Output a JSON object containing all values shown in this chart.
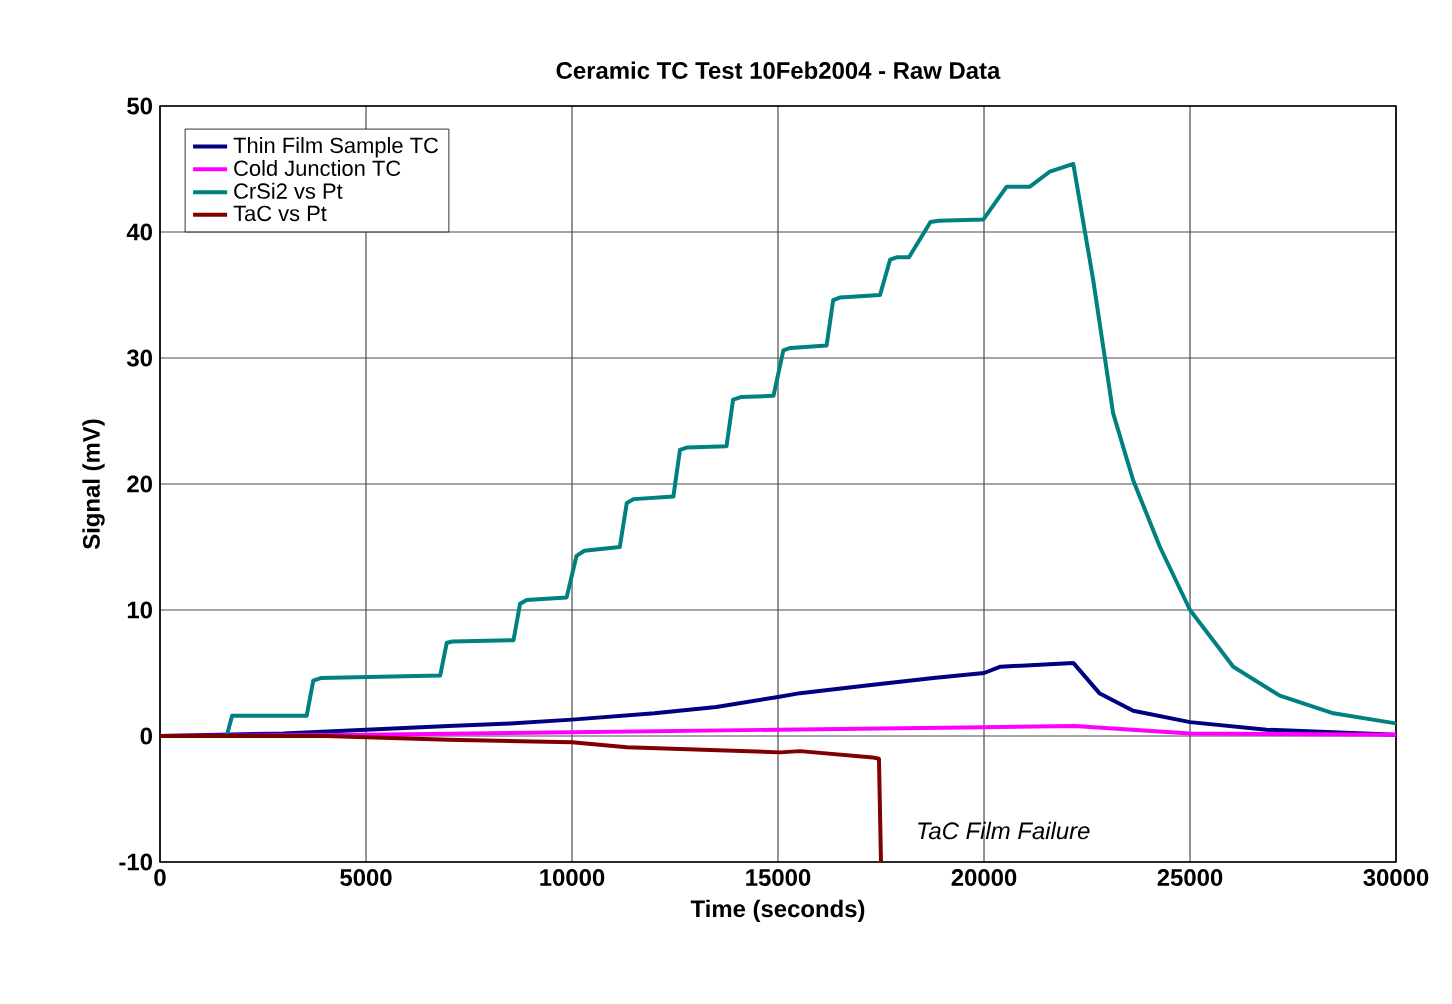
{
  "chart_data": {
    "type": "line",
    "title": "Ceramic TC Test 10Feb2004 - Raw Data",
    "xlabel": "Time (seconds)",
    "ylabel": "Signal (mV)",
    "xlim": [
      0,
      30000
    ],
    "ylim": [
      -10,
      50
    ],
    "xticks": [
      0,
      5000,
      10000,
      15000,
      20000,
      25000,
      30000
    ],
    "yticks": [
      -10,
      0,
      10,
      20,
      30,
      40,
      50
    ],
    "grid": true,
    "legend": "top left",
    "line_style": "solid",
    "marker": "none",
    "series": [
      {
        "name": "Thin Film Sample TC",
        "color": "#000080",
        "x": [
          0,
          3000,
          5000,
          7000,
          8500,
          10000,
          12000,
          13500,
          15000,
          15534,
          17150,
          18770,
          20000,
          20400,
          22167,
          22800,
          23620,
          25000,
          26860,
          30000
        ],
        "values": [
          0,
          0.2,
          0.5,
          0.8,
          1.0,
          1.3,
          1.8,
          2.3,
          3.1,
          3.4,
          4.0,
          4.6,
          5.0,
          5.5,
          5.8,
          3.4,
          2.0,
          1.1,
          0.5,
          0.1
        ]
      },
      {
        "name": "Cold Junction TC",
        "color": "#ff00ff",
        "x": [
          0,
          5000,
          10000,
          15000,
          20000,
          22200,
          25000,
          30000
        ],
        "values": [
          0,
          0.1,
          0.3,
          0.5,
          0.7,
          0.8,
          0.2,
          0.1
        ]
      },
      {
        "name": "CrSi2 vs Pt",
        "color": "#008080",
        "x": [
          0,
          1618,
          1750,
          3560,
          3720,
          3900,
          6800,
          6960,
          7100,
          8580,
          8740,
          8900,
          9870,
          10110,
          10300,
          11160,
          11330,
          11500,
          12460,
          12620,
          12800,
          13750,
          13910,
          14100,
          14890,
          15130,
          15300,
          16180,
          16340,
          16500,
          17476,
          17720,
          17900,
          18180,
          18700,
          18900,
          19985,
          20550,
          20700,
          21114,
          21600,
          22167,
          22650,
          23135,
          23620,
          24270,
          25000,
          26050,
          27180,
          28480,
          30000
        ],
        "values": [
          0,
          0,
          1.6,
          1.6,
          4.4,
          4.6,
          4.8,
          7.4,
          7.5,
          7.6,
          10.5,
          10.8,
          11.0,
          14.3,
          14.7,
          15.0,
          18.5,
          18.8,
          19.0,
          22.7,
          22.9,
          23.0,
          26.7,
          26.9,
          27.0,
          30.6,
          30.8,
          31.0,
          34.6,
          34.8,
          35.0,
          37.8,
          38.0,
          38.0,
          40.8,
          40.9,
          41.0,
          43.6,
          43.6,
          43.6,
          44.8,
          45.4,
          36.2,
          25.6,
          20.3,
          15.0,
          10.0,
          5.5,
          3.2,
          1.8,
          1.0
        ]
      },
      {
        "name": "TaC vs Pt",
        "color": "#800000",
        "x": [
          0,
          4000,
          7000,
          10000,
          11330,
          15050,
          15534,
          17300,
          17450,
          17500
        ],
        "values": [
          0,
          0,
          -0.3,
          -0.5,
          -0.9,
          -1.3,
          -1.2,
          -1.7,
          -1.8,
          -10
        ]
      }
    ],
    "annotations": [
      {
        "text": "TaC Film Failure",
        "x": 17500,
        "y": -7.5
      }
    ]
  }
}
